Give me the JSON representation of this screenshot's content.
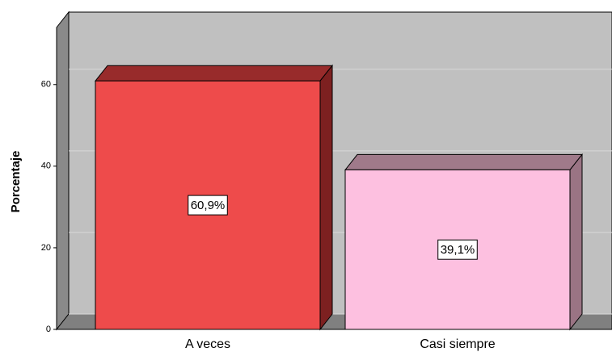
{
  "chart_data": {
    "type": "bar3d",
    "y_label": "Porcentaje",
    "categories": [
      "A veces",
      "Casi siempre"
    ],
    "values": [
      60.9,
      39.1
    ],
    "value_labels": [
      "60,9%",
      "39,1%"
    ],
    "colors": [
      "#ee4b4b",
      "#fdc0e0"
    ],
    "top_colors": [
      "#982b2b",
      "#a07a8a"
    ],
    "side_colors": [
      "#7d2020",
      "#9a7484"
    ],
    "ylim": [
      0,
      74
    ],
    "yticks": [
      0,
      20,
      40,
      60
    ],
    "grid": true
  }
}
